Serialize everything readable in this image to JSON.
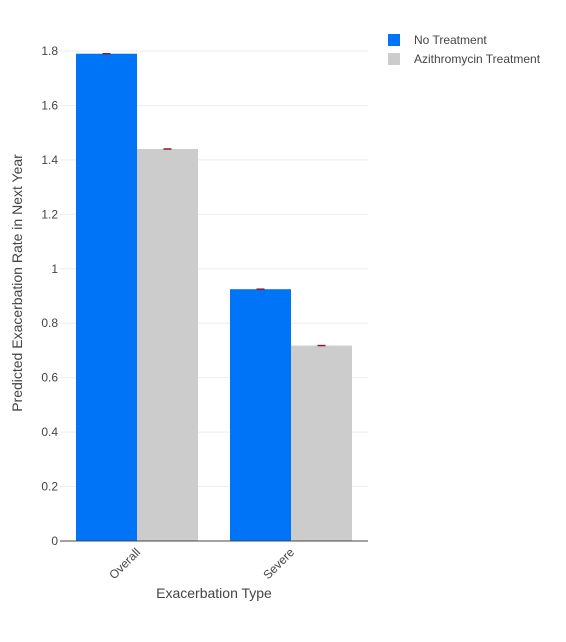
{
  "chart_data": {
    "type": "bar",
    "xlabel": "Exacerbation Type",
    "ylabel": "Predicted Exacerbation Rate in Next Year",
    "categories": [
      "Overall",
      "Severe"
    ],
    "series": [
      {
        "name": "No Treatment",
        "values": [
          1.79,
          0.925
        ],
        "color": "#0074f6"
      },
      {
        "name": "Azithromycin Treatment",
        "values": [
          1.44,
          0.718
        ],
        "color": "#cccccc"
      }
    ],
    "ylim": [
      0,
      1.85
    ],
    "yticks": [
      0,
      0.2,
      0.4,
      0.6,
      0.8,
      1,
      1.2,
      1.4,
      1.6,
      1.8
    ],
    "ytick_labels": [
      "0",
      "0.2",
      "0.4",
      "0.6",
      "0.8",
      "1",
      "1.2",
      "1.4",
      "1.6",
      "1.8"
    ],
    "error_bar_color": "#8b1a2b",
    "grid": true,
    "legend_position": "top-right"
  }
}
